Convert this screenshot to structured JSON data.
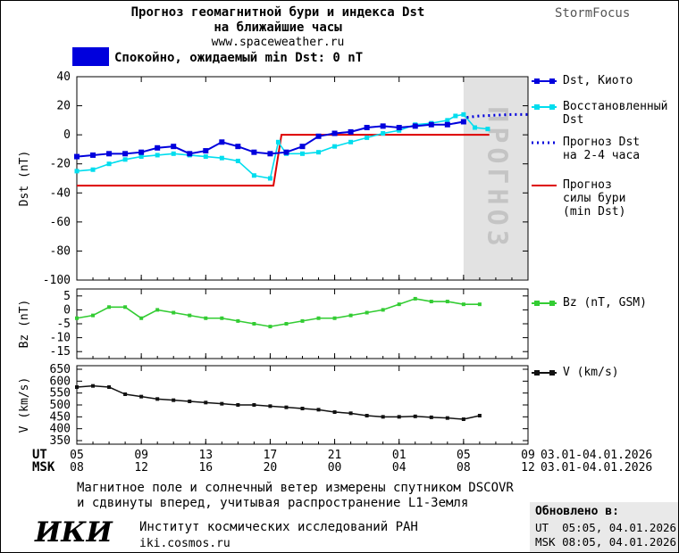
{
  "header": {
    "title_line1": "Прогноз геомагнитной бури и индекса Dst",
    "title_line2": "на ближайшие часы",
    "site": "www.spaceweather.ru",
    "brand": "StormFocus"
  },
  "status": {
    "label": "Спокойно, ожидаемый min Dst: 0 nT",
    "color": "#0000dd"
  },
  "chart_data": [
    {
      "id": "dst",
      "type": "line",
      "ylabel": "Dst (nT)",
      "ylim": [
        -100,
        40
      ],
      "yticks": [
        40,
        20,
        0,
        -20,
        -40,
        -60,
        -80,
        -100
      ],
      "xlim": [
        5,
        33
      ],
      "xticks": [
        5,
        9,
        13,
        17,
        21,
        25,
        29,
        33
      ],
      "forecast_band": {
        "from": 29,
        "to": 33,
        "label": "ПРОГНОЗ"
      },
      "series": [
        {
          "id": "storm-forecast",
          "name": "Прогноз силы бури (min Dst)",
          "color": "#dd0000",
          "width": 2,
          "points": [
            [
              5,
              -35
            ],
            [
              17.2,
              -35
            ],
            [
              17.7,
              0
            ],
            [
              30.6,
              0
            ]
          ]
        },
        {
          "id": "dst-restored",
          "name": "Восстановленный Dst",
          "color": "#00ddee",
          "width": 1.6,
          "marker": 5,
          "points": [
            [
              5,
              -25
            ],
            [
              6,
              -24
            ],
            [
              7,
              -20
            ],
            [
              8,
              -17
            ],
            [
              9,
              -15
            ],
            [
              10,
              -14
            ],
            [
              11,
              -13
            ],
            [
              12,
              -14
            ],
            [
              13,
              -15
            ],
            [
              14,
              -16
            ],
            [
              15,
              -18
            ],
            [
              16,
              -28
            ],
            [
              17,
              -30
            ],
            [
              17.5,
              -5
            ],
            [
              18,
              -13
            ],
            [
              19,
              -13
            ],
            [
              20,
              -12
            ],
            [
              21,
              -8
            ],
            [
              22,
              -5
            ],
            [
              23,
              -2
            ],
            [
              24,
              1
            ],
            [
              25,
              3
            ],
            [
              26,
              7
            ],
            [
              27,
              8
            ],
            [
              28,
              10
            ],
            [
              28.5,
              13
            ],
            [
              29,
              14
            ],
            [
              29.7,
              5
            ],
            [
              30.5,
              4
            ]
          ]
        },
        {
          "id": "dst-kyoto",
          "name": "Dst, Киото",
          "color": "#0000dd",
          "width": 2,
          "marker": 6,
          "points": [
            [
              5,
              -15
            ],
            [
              6,
              -14
            ],
            [
              7,
              -13
            ],
            [
              8,
              -13
            ],
            [
              9,
              -12
            ],
            [
              10,
              -9
            ],
            [
              11,
              -8
            ],
            [
              12,
              -13
            ],
            [
              13,
              -11
            ],
            [
              14,
              -5
            ],
            [
              15,
              -8
            ],
            [
              16,
              -12
            ],
            [
              17,
              -13
            ],
            [
              18,
              -12
            ],
            [
              19,
              -8
            ],
            [
              20,
              -1
            ],
            [
              21,
              1
            ],
            [
              22,
              2
            ],
            [
              23,
              5
            ],
            [
              24,
              6
            ],
            [
              25,
              5
            ],
            [
              26,
              6
            ],
            [
              27,
              7
            ],
            [
              28,
              7
            ],
            [
              29,
              9
            ]
          ]
        },
        {
          "id": "dst-forecast",
          "name": "Прогноз Dst на 2-4 часа",
          "color": "#0000dd",
          "width": 3,
          "dash": "2,4",
          "points": [
            [
              29.2,
              12
            ],
            [
              30,
              13
            ],
            [
              31,
              13.5
            ],
            [
              32,
              14
            ],
            [
              33,
              14
            ]
          ]
        }
      ]
    },
    {
      "id": "bz",
      "type": "line",
      "ylabel": "Bz (nT)",
      "ylim": [
        -17.5,
        7.5
      ],
      "yticks": [
        5,
        0,
        -5,
        -10,
        -15
      ],
      "xlim": [
        5,
        33
      ],
      "xticks": [
        5,
        9,
        13,
        17,
        21,
        25,
        29,
        33
      ],
      "series": [
        {
          "id": "bz",
          "name": "Bz (nT, GSM)",
          "color": "#33cc33",
          "width": 1.6,
          "marker": 4,
          "points": [
            [
              5,
              -3
            ],
            [
              6,
              -2
            ],
            [
              7,
              1
            ],
            [
              8,
              1
            ],
            [
              9,
              -3
            ],
            [
              10,
              0
            ],
            [
              11,
              -1
            ],
            [
              12,
              -2
            ],
            [
              13,
              -3
            ],
            [
              14,
              -3
            ],
            [
              15,
              -4
            ],
            [
              16,
              -5
            ],
            [
              17,
              -6
            ],
            [
              18,
              -5
            ],
            [
              19,
              -4
            ],
            [
              20,
              -3
            ],
            [
              21,
              -3
            ],
            [
              22,
              -2
            ],
            [
              23,
              -1
            ],
            [
              24,
              0
            ],
            [
              25,
              2
            ],
            [
              26,
              4
            ],
            [
              27,
              3
            ],
            [
              28,
              3
            ],
            [
              29,
              2
            ],
            [
              30,
              2
            ]
          ]
        }
      ]
    },
    {
      "id": "v",
      "type": "line",
      "ylabel": "V (km/s)",
      "ylim": [
        335,
        665
      ],
      "yticks": [
        650,
        600,
        550,
        500,
        450,
        400,
        350
      ],
      "xlim": [
        5,
        33
      ],
      "xticks": [
        5,
        9,
        13,
        17,
        21,
        25,
        29,
        33
      ],
      "series": [
        {
          "id": "v",
          "name": "V (km/s)",
          "color": "#111111",
          "width": 1.5,
          "marker": 4,
          "points": [
            [
              5,
              575
            ],
            [
              6,
              580
            ],
            [
              7,
              575
            ],
            [
              8,
              545
            ],
            [
              9,
              535
            ],
            [
              10,
              525
            ],
            [
              11,
              520
            ],
            [
              12,
              515
            ],
            [
              13,
              510
            ],
            [
              14,
              505
            ],
            [
              15,
              500
            ],
            [
              16,
              500
            ],
            [
              17,
              495
            ],
            [
              18,
              490
            ],
            [
              19,
              485
            ],
            [
              20,
              480
            ],
            [
              21,
              470
            ],
            [
              22,
              465
            ],
            [
              23,
              455
            ],
            [
              24,
              450
            ],
            [
              25,
              450
            ],
            [
              26,
              452
            ],
            [
              27,
              448
            ],
            [
              28,
              445
            ],
            [
              29,
              440
            ],
            [
              30,
              455
            ]
          ]
        }
      ]
    }
  ],
  "legend": {
    "main": [
      {
        "id": "dst-kyoto",
        "label_lines": [
          "Dst, Киото"
        ],
        "color": "#0000dd",
        "style": "squares"
      },
      {
        "id": "dst-restored",
        "label_lines": [
          "Восстановленный",
          "Dst"
        ],
        "color": "#00ddee",
        "style": "squares"
      },
      {
        "id": "dst-forecast",
        "label_lines": [
          "Прогноз Dst",
          "на 2-4 часа"
        ],
        "color": "#0000dd",
        "style": "dotted"
      },
      {
        "id": "storm-forecast",
        "label_lines": [
          "Прогноз",
          "силы бури",
          "(min Dst)"
        ],
        "color": "#dd0000",
        "style": "line"
      }
    ],
    "bz": [
      {
        "id": "bz",
        "label_lines": [
          "Bz (nT, GSM)"
        ],
        "color": "#33cc33",
        "style": "squares"
      }
    ],
    "v": [
      {
        "id": "v",
        "label_lines": [
          "V (km/s)"
        ],
        "color": "#111111",
        "style": "squares"
      }
    ]
  },
  "xaxis": {
    "ut_label": "UT",
    "msk_label": "MSK",
    "ut_ticks": [
      "05",
      "09",
      "13",
      "17",
      "21",
      "01",
      "05",
      "09"
    ],
    "msk_ticks": [
      "08",
      "12",
      "16",
      "20",
      "00",
      "04",
      "08",
      "12"
    ],
    "ut_date": "03.01-04.01.2026",
    "msk_date": "03.01-04.01.2026"
  },
  "footer": {
    "note_line1": "Магнитное поле и солнечный ветер измерены спутником DSCOVR",
    "note_line2": "и сдвинуты вперед, учитывая распространение L1-Земля",
    "logo": "ИКИ",
    "institute": "Институт космических исследований РАН",
    "site": "iki.cosmos.ru",
    "updated_label": "Обновлено в:",
    "updated_ut": "UT  05:05, 04.01.2026",
    "updated_msk": "MSK 08:05, 04.01.2026"
  }
}
